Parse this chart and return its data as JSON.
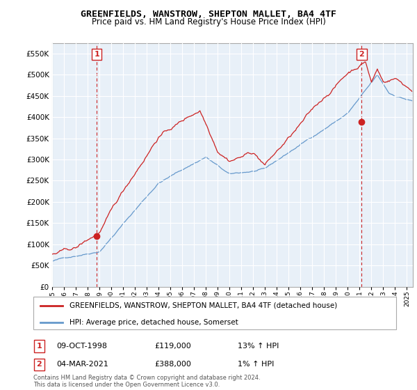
{
  "title": "GREENFIELDS, WANSTROW, SHEPTON MALLET, BA4 4TF",
  "subtitle": "Price paid vs. HM Land Registry's House Price Index (HPI)",
  "legend_line1": "GREENFIELDS, WANSTROW, SHEPTON MALLET, BA4 4TF (detached house)",
  "legend_line2": "HPI: Average price, detached house, Somerset",
  "marker1_date": "09-OCT-1998",
  "marker1_price": 119000,
  "marker1_hpi": "13% ↑ HPI",
  "marker2_date": "04-MAR-2021",
  "marker2_price": 388000,
  "marker2_hpi": "1% ↑ HPI",
  "footer": "Contains HM Land Registry data © Crown copyright and database right 2024.\nThis data is licensed under the Open Government Licence v3.0.",
  "ylim": [
    0,
    575000
  ],
  "yticks": [
    0,
    50000,
    100000,
    150000,
    200000,
    250000,
    300000,
    350000,
    400000,
    450000,
    500000,
    550000
  ],
  "hpi_color": "#6699cc",
  "price_color": "#cc2222",
  "dashed_color": "#cc2222",
  "marker_color": "#cc2222",
  "grid_color": "#dddddd",
  "bg_color": "#ffffff",
  "marker1_x": 1998.77,
  "marker2_x": 2021.17
}
